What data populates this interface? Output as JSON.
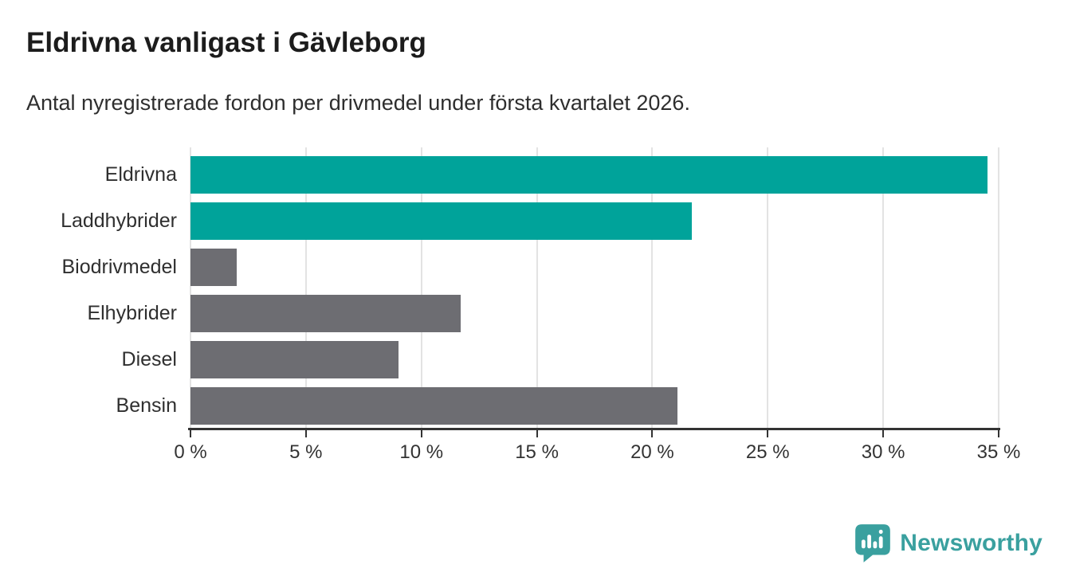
{
  "header": {
    "title": "Eldrivna vanligast i Gävleborg",
    "subtitle": "Antal nyregistrerade fordon per drivmedel under första kvartalet 2026."
  },
  "chart_data": {
    "type": "bar",
    "orientation": "horizontal",
    "title": "Eldrivna vanligast i Gävleborg",
    "subtitle": "Antal nyregistrerade fordon per drivmedel under första kvartalet 2026.",
    "categories": [
      "Eldrivna",
      "Laddhybrider",
      "Biodrivmedel",
      "Elhybrider",
      "Diesel",
      "Bensin"
    ],
    "values": [
      34.5,
      21.7,
      2.0,
      11.7,
      9.0,
      21.1
    ],
    "unit": "%",
    "xlim": [
      0,
      35
    ],
    "x_ticks": [
      0,
      5,
      10,
      15,
      20,
      25,
      30,
      35
    ],
    "x_tick_labels": [
      "0 %",
      "5 %",
      "10 %",
      "15 %",
      "20 %",
      "25 %",
      "30 %",
      "35 %"
    ],
    "grid": true,
    "legend_position": "none",
    "bar_colors": [
      "#00a39a",
      "#00a39a",
      "#6d6d72",
      "#6d6d72",
      "#6d6d72",
      "#6d6d72"
    ],
    "highlight_color": "#00a39a",
    "base_color": "#6d6d72"
  },
  "branding": {
    "logo_text": "Newsworthy",
    "logo_color": "#3aa09f",
    "logo_icon": "newsworthy-speech-bubble-bar-chart-icon"
  },
  "colors": {
    "accent_teal": "#00a39a",
    "neutral_gray": "#6d6d72",
    "gridline": "#e3e3e3",
    "axis": "#333333",
    "title_text": "#1c1c1c",
    "body_text": "#2e2e2e"
  }
}
